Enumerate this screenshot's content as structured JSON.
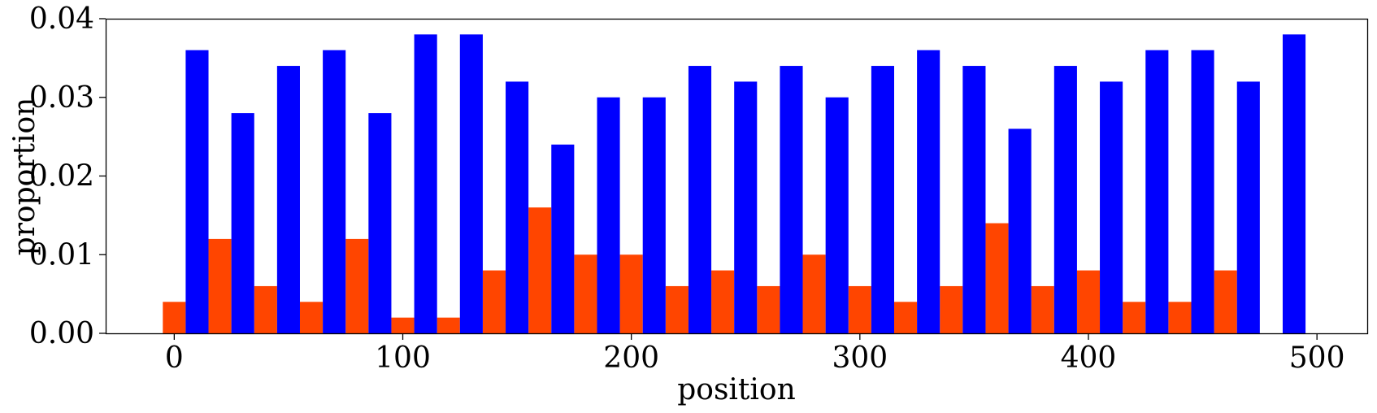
{
  "chart_data": {
    "type": "bar",
    "xlabel": "position",
    "ylabel": "proportion",
    "xlim": [
      -30,
      522
    ],
    "ylim": [
      0,
      0.04
    ],
    "xticks": [
      0,
      100,
      200,
      300,
      400,
      500
    ],
    "xtick_labels": [
      "0",
      "100",
      "200",
      "300",
      "400",
      "500"
    ],
    "yticks": [
      0,
      0.01,
      0.02,
      0.03,
      0.04
    ],
    "ytick_labels": [
      "0.00",
      "0.01",
      "0.02",
      "0.03",
      "0.04"
    ],
    "bar_width": 10,
    "grid": false,
    "series": [
      {
        "color": "#ff4500",
        "x": [
          0,
          20,
          40,
          60,
          80,
          100,
          120,
          140,
          160,
          180,
          200,
          220,
          240,
          260,
          280,
          300,
          320,
          340,
          360,
          380,
          400,
          420,
          440,
          460,
          480
        ],
        "values": [
          0.004,
          0.012,
          0.006,
          0.004,
          0.012,
          0.002,
          0.002,
          0.008,
          0.016,
          0.01,
          0.01,
          0.006,
          0.008,
          0.006,
          0.01,
          0.006,
          0.004,
          0.006,
          0.014,
          0.006,
          0.008,
          0.004,
          0.004,
          0.008,
          0.0
        ]
      },
      {
        "color": "#0000ff",
        "x": [
          10,
          30,
          50,
          70,
          90,
          110,
          130,
          150,
          170,
          190,
          210,
          230,
          250,
          270,
          290,
          310,
          330,
          350,
          370,
          390,
          410,
          430,
          450,
          470,
          490
        ],
        "values": [
          0.036,
          0.028,
          0.034,
          0.036,
          0.028,
          0.038,
          0.038,
          0.032,
          0.024,
          0.03,
          0.03,
          0.034,
          0.032,
          0.034,
          0.03,
          0.034,
          0.036,
          0.034,
          0.026,
          0.034,
          0.032,
          0.036,
          0.036,
          0.032,
          0.038
        ]
      }
    ]
  }
}
